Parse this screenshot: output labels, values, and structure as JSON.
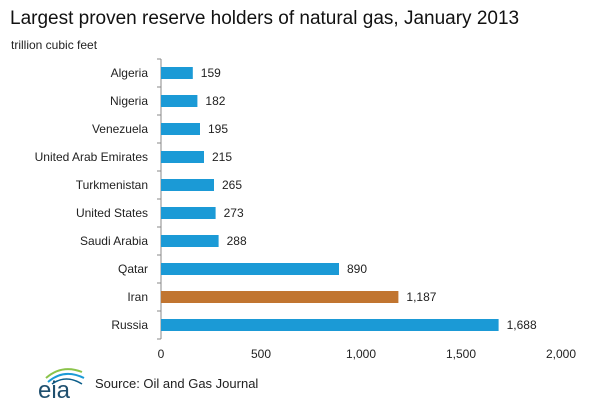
{
  "chart_data": {
    "type": "bar",
    "orientation": "horizontal",
    "title": "Largest  proven reserve holders of natural gas, January 2013",
    "ylabel": "trillion cubic feet",
    "xlabel": "",
    "categories": [
      "Algeria",
      "Nigeria",
      "Venezuela",
      "United Arab Emirates",
      "Turkmenistan",
      "United States",
      "Saudi Arabia",
      "Qatar",
      "Iran",
      "Russia"
    ],
    "values": [
      159,
      182,
      195,
      215,
      265,
      273,
      288,
      890,
      1187,
      1688
    ],
    "value_labels": [
      "159",
      "182",
      "195",
      "215",
      "265",
      "273",
      "288",
      "890",
      "1,187",
      "1,688"
    ],
    "highlight": "Iran",
    "xlim": [
      0,
      2000
    ],
    "xticks": [
      0,
      500,
      1000,
      1500,
      2000
    ],
    "xtick_labels": [
      "0",
      "500",
      "1,000",
      "1,500",
      "2,000"
    ],
    "grid": false,
    "colors": {
      "default": "#1b9ad6",
      "highlight": "#c17530"
    }
  },
  "footer": {
    "source": "Source: Oil and Gas Journal",
    "logo_text": "eia"
  }
}
